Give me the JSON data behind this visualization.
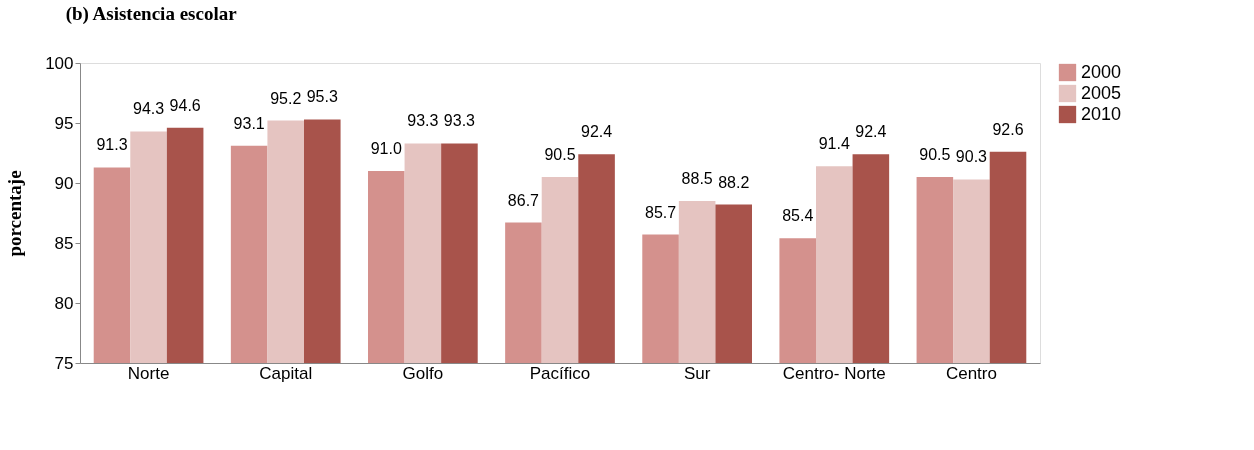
{
  "chart_data": {
    "type": "bar",
    "title": "(b) Asistencia escolar",
    "ylabel": "porcentaje",
    "categories": [
      "Norte",
      "Capital",
      "Golfo",
      "Pacífico",
      "Sur",
      "Centro- Norte",
      "Centro"
    ],
    "series": [
      {
        "name": "2000",
        "color": "#d4918d",
        "values": [
          91.3,
          93.1,
          91.0,
          86.7,
          85.7,
          85.4,
          90.5
        ],
        "value_labels": [
          "91.3",
          "93.1",
          "91.0",
          "86.7",
          "85.7",
          "85.4",
          "90.5"
        ]
      },
      {
        "name": "2005",
        "color": "#e5c4c1",
        "values": [
          94.3,
          95.2,
          93.3,
          90.5,
          88.5,
          91.4,
          90.3
        ],
        "value_labels": [
          "94.3",
          "95.2",
          "93.3",
          "90.5",
          "88.5",
          "91.4",
          "90.3"
        ]
      },
      {
        "name": "2010",
        "color": "#a8534b",
        "values": [
          94.6,
          95.3,
          93.3,
          92.4,
          88.2,
          92.4,
          92.6
        ],
        "value_labels": [
          "94.6",
          "95.3",
          "93.3",
          "92.4",
          "88.2",
          "92.4",
          "92.6"
        ]
      }
    ],
    "ylim": [
      75,
      100
    ],
    "yticks": [
      75,
      80,
      85,
      90,
      95,
      100
    ],
    "grid": false,
    "legend": "right"
  }
}
